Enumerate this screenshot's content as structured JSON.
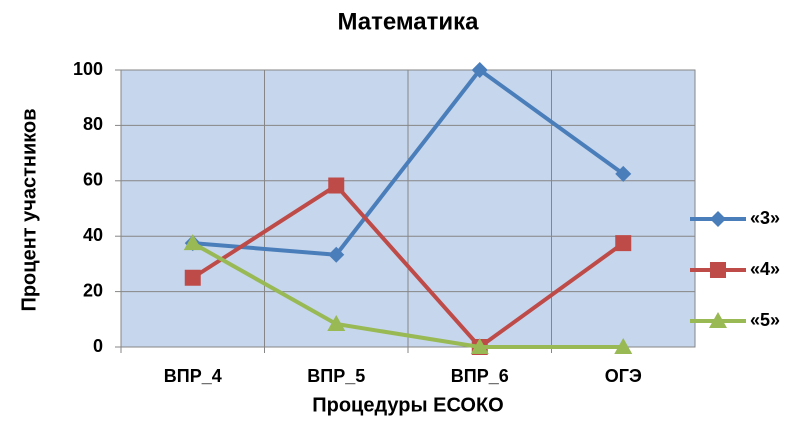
{
  "chart_data": {
    "type": "line",
    "title": "Математика",
    "x_label": "Процедуры ЕСОКО",
    "y_label": "Процент участников",
    "categories": [
      "ВПР_4",
      "ВПР_5",
      "ВПР_6",
      "ОГЭ"
    ],
    "series": [
      {
        "name": "«3»",
        "color": "#4a7ebb",
        "marker": "diamond",
        "values": [
          37.5,
          33.3,
          100,
          62.5
        ]
      },
      {
        "name": "«4»",
        "color": "#be4b48",
        "marker": "square",
        "values": [
          25,
          58.3,
          0,
          37.5
        ]
      },
      {
        "name": "«5»",
        "color": "#98b954",
        "marker": "triangle",
        "values": [
          37.5,
          8.3,
          0,
          0
        ]
      }
    ],
    "ylim": [
      0,
      100
    ],
    "yticks": [
      0,
      20,
      40,
      60,
      80,
      100
    ],
    "grid": true,
    "legend": "right"
  }
}
